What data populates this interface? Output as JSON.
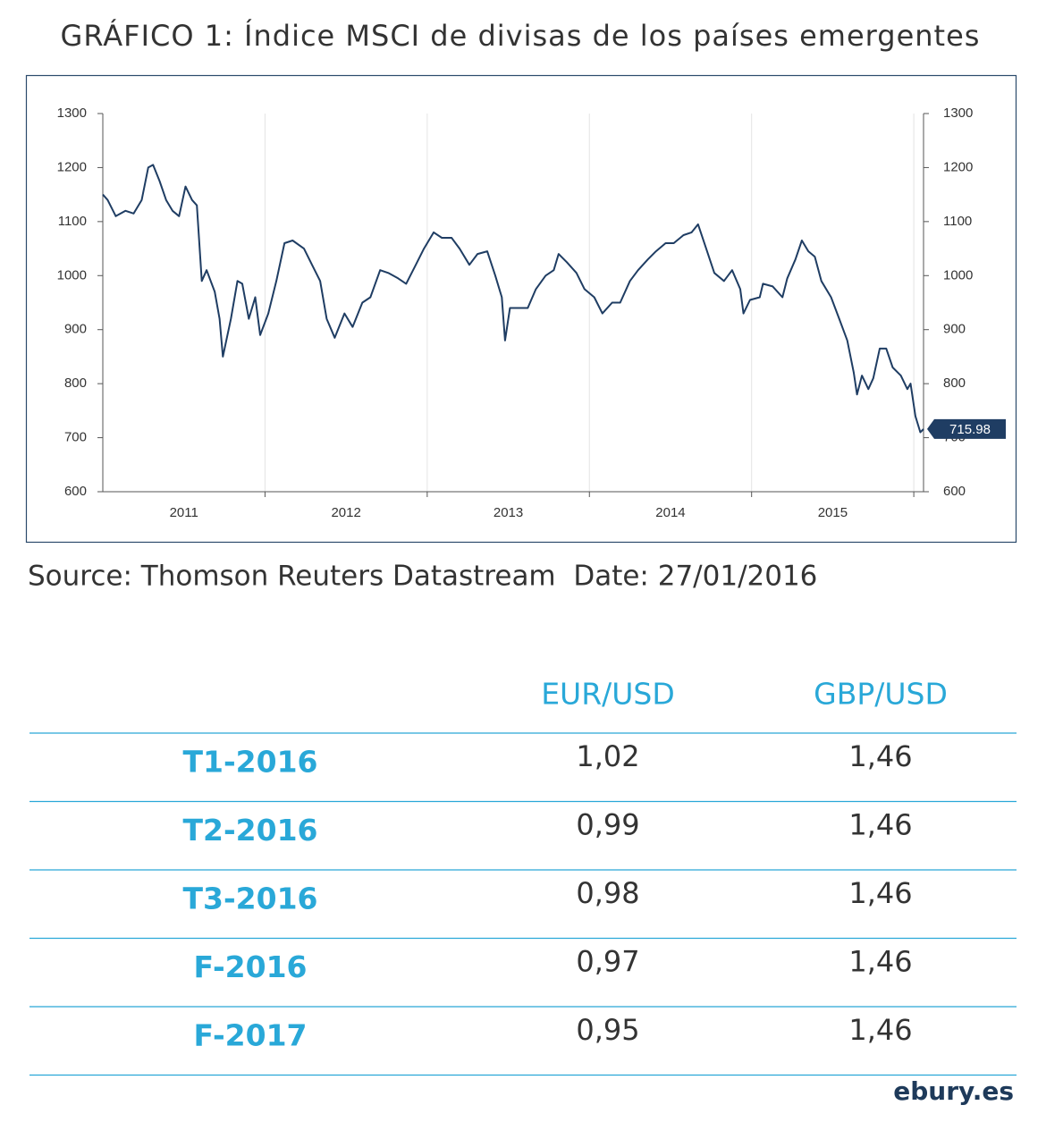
{
  "chart_data": {
    "type": "line",
    "title": "GRÁFICO 1: Índice MSCI de divisas de los países emergentes",
    "source": "Source: Thomson Reuters Datastream  Date: 27/01/2016",
    "x": [
      2011.0,
      2011.03,
      2011.08,
      2011.14,
      2011.19,
      2011.24,
      2011.28,
      2011.31,
      2011.35,
      2011.39,
      2011.43,
      2011.47,
      2011.51,
      2011.55,
      2011.58,
      2011.61,
      2011.64,
      2011.69,
      2011.72,
      2011.74,
      2011.79,
      2011.83,
      2011.86,
      2011.9,
      2011.94,
      2011.97,
      2012.02,
      2012.07,
      2012.12,
      2012.17,
      2012.24,
      2012.29,
      2012.34,
      2012.38,
      2012.43,
      2012.49,
      2012.54,
      2012.6,
      2012.65,
      2012.71,
      2012.76,
      2012.82,
      2012.87,
      2012.93,
      2012.98,
      2013.04,
      2013.09,
      2013.15,
      2013.2,
      2013.26,
      2013.31,
      2013.37,
      2013.42,
      2013.46,
      2013.48,
      2013.51,
      2013.56,
      2013.62,
      2013.67,
      2013.73,
      2013.78,
      2013.81,
      2013.86,
      2013.92,
      2013.97,
      2014.03,
      2014.08,
      2014.14,
      2014.19,
      2014.25,
      2014.3,
      2014.36,
      2014.41,
      2014.47,
      2014.52,
      2014.58,
      2014.63,
      2014.67,
      2014.72,
      2014.77,
      2014.83,
      2014.88,
      2014.93,
      2014.95,
      2014.99,
      2015.05,
      2015.07,
      2015.13,
      2015.19,
      2015.22,
      2015.27,
      2015.31,
      2015.35,
      2015.39,
      2015.43,
      2015.49,
      2015.54,
      2015.59,
      2015.63,
      2015.65,
      2015.68,
      2015.72,
      2015.75,
      2015.79,
      2015.83,
      2015.87,
      2015.92,
      2015.96,
      2015.98,
      2016.01,
      2016.04,
      2016.06
    ],
    "values": [
      1150,
      1140,
      1110,
      1120,
      1115,
      1140,
      1200,
      1205,
      1175,
      1140,
      1120,
      1110,
      1165,
      1140,
      1130,
      990,
      1010,
      970,
      920,
      850,
      920,
      990,
      985,
      920,
      960,
      890,
      930,
      990,
      1060,
      1065,
      1050,
      1020,
      990,
      920,
      885,
      930,
      905,
      950,
      960,
      1010,
      1005,
      995,
      985,
      1020,
      1050,
      1080,
      1070,
      1070,
      1050,
      1020,
      1040,
      1045,
      1000,
      960,
      880,
      940,
      940,
      940,
      975,
      1000,
      1010,
      1040,
      1025,
      1005,
      975,
      960,
      930,
      950,
      950,
      990,
      1010,
      1030,
      1045,
      1060,
      1060,
      1075,
      1080,
      1095,
      1050,
      1005,
      990,
      1010,
      975,
      930,
      955,
      960,
      985,
      980,
      960,
      995,
      1030,
      1065,
      1045,
      1035,
      990,
      960,
      920,
      880,
      820,
      780,
      815,
      790,
      810,
      865,
      865,
      830,
      815,
      790,
      800,
      740,
      710,
      715.98
    ],
    "color": "#1f3d63",
    "xlim": [
      2011,
      2016.06
    ],
    "xticks": [
      {
        "value": 2011.5,
        "label": "2011"
      },
      {
        "value": 2012.5,
        "label": "2012"
      },
      {
        "value": 2013.5,
        "label": "2013"
      },
      {
        "value": 2014.5,
        "label": "2014"
      },
      {
        "value": 2015.5,
        "label": "2015"
      }
    ],
    "xgrid": [
      2012,
      2013,
      2014,
      2015,
      2016
    ],
    "ylim": [
      600,
      1300
    ],
    "yticks": [
      600,
      700,
      800,
      900,
      1000,
      1100,
      1200,
      1300
    ],
    "y2lim": [
      600,
      1300
    ],
    "y2ticks": [
      600,
      700,
      800,
      900,
      1000,
      1100,
      1200,
      1300
    ],
    "grid": true
  },
  "table": {
    "columns": [
      "EUR/USD",
      "GBP/USD"
    ],
    "rows": [
      [
        "T1-2016",
        "1,02",
        "1,46"
      ],
      [
        "T2-2016",
        "0,99",
        "1,46"
      ],
      [
        "T3-2016",
        "0,98",
        "1,46"
      ],
      [
        "F-2016",
        "0,97",
        "1,46"
      ],
      [
        "F-2017",
        "0,95",
        "1,46"
      ]
    ]
  },
  "footer": "ebury.es"
}
